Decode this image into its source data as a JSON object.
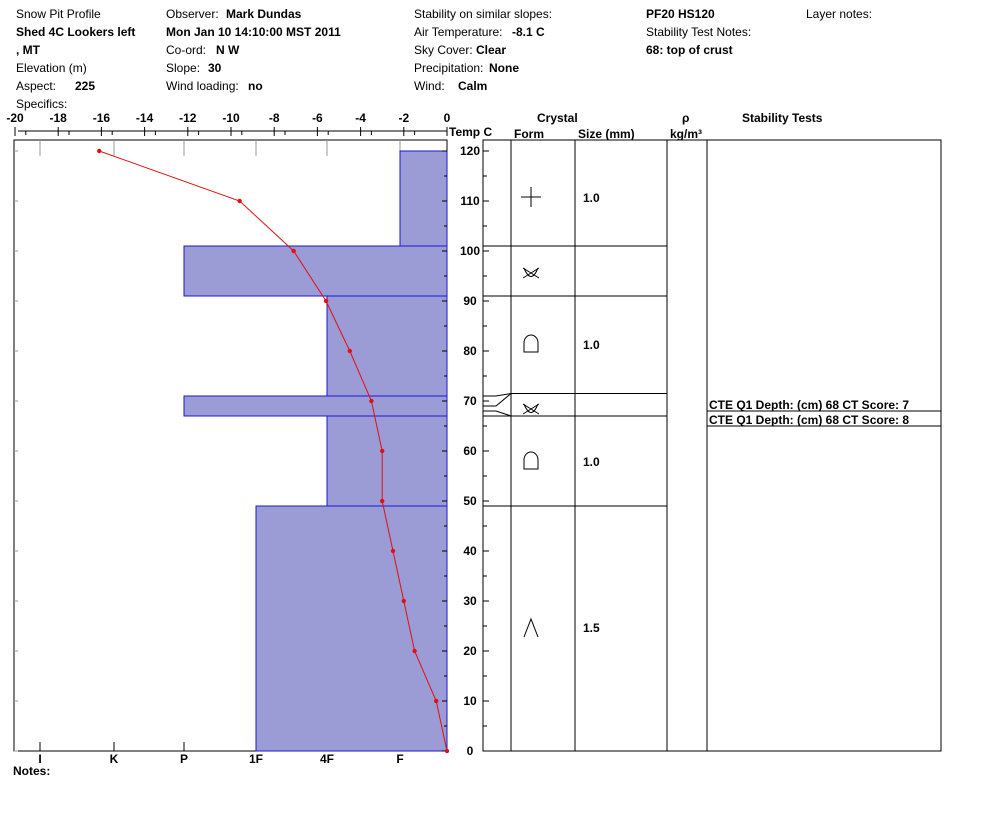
{
  "header": {
    "title": "Snow Pit Profile",
    "location_line1": "Shed 4C Lookers left",
    "location_line2": ", MT",
    "elevation_label": "Elevation (m)",
    "aspect_label": "Aspect:",
    "aspect_value": "225",
    "specifics_label": "Specifics:",
    "observer_label": "Observer:",
    "observer_value": "Mark Dundas",
    "datetime": "Mon Jan 10 14:10:00 MST 2011",
    "coord_label": "Co-ord:",
    "coord_value": "N  W",
    "slope_label": "Slope:",
    "slope_value": "30",
    "wind_loading_label": "Wind loading:",
    "wind_loading_value": "no",
    "stability_similar_label": "Stability on similar slopes:",
    "air_temp_label": "Air Temperature:",
    "air_temp_value": "-8.1 C",
    "sky_label": "Sky Cover:",
    "sky_value": "Clear",
    "precip_label": "Precipitation:",
    "precip_value": "None",
    "wind_label": "Wind:",
    "wind_value": "Calm",
    "pf_hs": "PF20 HS120",
    "stability_notes_label": "Stability Test Notes:",
    "stability_note": "68: top of crust",
    "layer_notes_label": "Layer notes:"
  },
  "columns": {
    "temp": "Temp C",
    "crystal": "Crystal",
    "form": "Form",
    "size": "Size (mm)",
    "rho": "ρ",
    "density_unit": "kg/m³",
    "stability_tests": "Stability Tests"
  },
  "notes_label": "Notes:",
  "colors": {
    "layer_fill": "#9b9bd5",
    "layer_stroke": "#1a1ad0",
    "temp_line": "#e01010"
  },
  "chart_data": {
    "type": "snow-profile",
    "temp_axis": {
      "ticks": [
        "-20",
        "-18",
        "-16",
        "-14",
        "-12",
        "-10",
        "-8",
        "-6",
        "-4",
        "-2",
        "0"
      ],
      "range": [
        -20,
        0
      ]
    },
    "height_axis": {
      "ticks": [
        "0",
        "10",
        "20",
        "30",
        "40",
        "50",
        "60",
        "70",
        "80",
        "90",
        "100",
        "110",
        "120"
      ],
      "range": [
        0,
        120
      ]
    },
    "hardness_axis": {
      "ticks": [
        "I",
        "K",
        "P",
        "1F",
        "4F",
        "F"
      ]
    },
    "temperature_profile": [
      {
        "h": 120,
        "t": -16.1
      },
      {
        "h": 110,
        "t": -9.6
      },
      {
        "h": 100,
        "t": -7.1
      },
      {
        "h": 90,
        "t": -5.6
      },
      {
        "h": 80,
        "t": -4.5
      },
      {
        "h": 70,
        "t": -3.5
      },
      {
        "h": 60,
        "t": -3.0
      },
      {
        "h": 50,
        "t": -3.0
      },
      {
        "h": 40,
        "t": -2.5
      },
      {
        "h": 30,
        "t": -2.0
      },
      {
        "h": 20,
        "t": -1.5
      },
      {
        "h": 10,
        "t": -0.5
      },
      {
        "h": 0,
        "t": 0
      }
    ],
    "layers": [
      {
        "top": 120,
        "bottom": 101,
        "hardness": "F",
        "form": "precip",
        "size": "1.0"
      },
      {
        "top": 101,
        "bottom": 91,
        "hardness": "P",
        "form": "rounding-facet",
        "size": ""
      },
      {
        "top": 91,
        "bottom": 71,
        "hardness": "4F",
        "form": "rounded",
        "size": "1.0"
      },
      {
        "top": 71,
        "bottom": 67,
        "hardness": "P",
        "form": "rounding-facet",
        "size": ""
      },
      {
        "top": 67,
        "bottom": 49,
        "hardness": "4F",
        "form": "rounded",
        "size": "1.0"
      },
      {
        "top": 49,
        "bottom": 0,
        "hardness": "1F",
        "form": "depth-hoar",
        "size": "1.5"
      }
    ],
    "stability_tests": [
      "CTE Q1 Depth: (cm) 68 CT Score: 7",
      "CTE Q1 Depth: (cm) 68 CT Score: 8"
    ]
  }
}
